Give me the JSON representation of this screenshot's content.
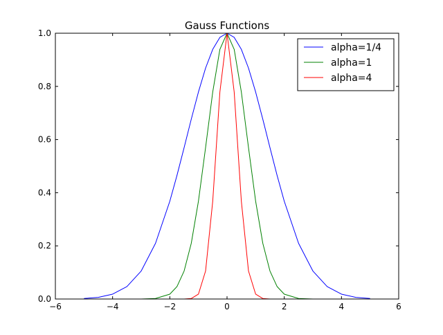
{
  "chart_data": {
    "type": "line",
    "title": "Gauss Functions",
    "xlabel": "",
    "ylabel": "",
    "xlim": [
      -6,
      6
    ],
    "ylim": [
      0,
      1.0
    ],
    "x_ticks": [
      -6,
      -4,
      -2,
      0,
      2,
      4,
      6
    ],
    "x_tick_labels": [
      "−6",
      "−4",
      "−2",
      "0",
      "2",
      "4",
      "6"
    ],
    "y_ticks": [
      0.0,
      0.2,
      0.4,
      0.6,
      0.8,
      1.0
    ],
    "y_tick_labels": [
      "0.0",
      "0.2",
      "0.4",
      "0.6",
      "0.8",
      "1.0"
    ],
    "grid": false,
    "legend_position": "top-right",
    "x": [
      -5,
      -4.5,
      -4,
      -3.5,
      -3,
      -2.5,
      -2,
      -1.75,
      -1.5,
      -1.25,
      -1,
      -0.75,
      -0.5,
      -0.25,
      0,
      0.25,
      0.5,
      0.75,
      1,
      1.25,
      1.5,
      1.75,
      2,
      2.5,
      3,
      3.5,
      4,
      4.5,
      5
    ],
    "series": [
      {
        "name": "alpha=1/4",
        "color": "#0000ff",
        "values": [
          0.0019,
          0.0063,
          0.0183,
          0.0468,
          0.1054,
          0.2096,
          0.3679,
          0.465,
          0.5698,
          0.6766,
          0.7788,
          0.8688,
          0.9394,
          0.9845,
          1.0,
          0.9845,
          0.9394,
          0.8688,
          0.7788,
          0.6766,
          0.5698,
          0.465,
          0.3679,
          0.2096,
          0.1054,
          0.0468,
          0.0183,
          0.0063,
          0.0019
        ]
      },
      {
        "name": "alpha=1",
        "color": "#008000",
        "values": [
          0.0,
          0.0,
          0.0,
          0.0,
          0.0001,
          0.0019,
          0.0183,
          0.0468,
          0.1054,
          0.2096,
          0.3679,
          0.5698,
          0.7788,
          0.9394,
          1.0,
          0.9394,
          0.7788,
          0.5698,
          0.3679,
          0.2096,
          0.1054,
          0.0468,
          0.0183,
          0.0019,
          0.0001,
          0.0,
          0.0,
          0.0,
          0.0
        ]
      },
      {
        "name": "alpha=4",
        "color": "#ff0000",
        "values": [
          0.0,
          0.0,
          0.0,
          0.0,
          0.0,
          0.0,
          0.0,
          0.0,
          0.0001,
          0.0019,
          0.0183,
          0.1054,
          0.3679,
          0.7788,
          1.0,
          0.7788,
          0.3679,
          0.1054,
          0.0183,
          0.0019,
          0.0001,
          0.0,
          0.0,
          0.0,
          0.0,
          0.0,
          0.0,
          0.0,
          0.0
        ]
      }
    ]
  }
}
